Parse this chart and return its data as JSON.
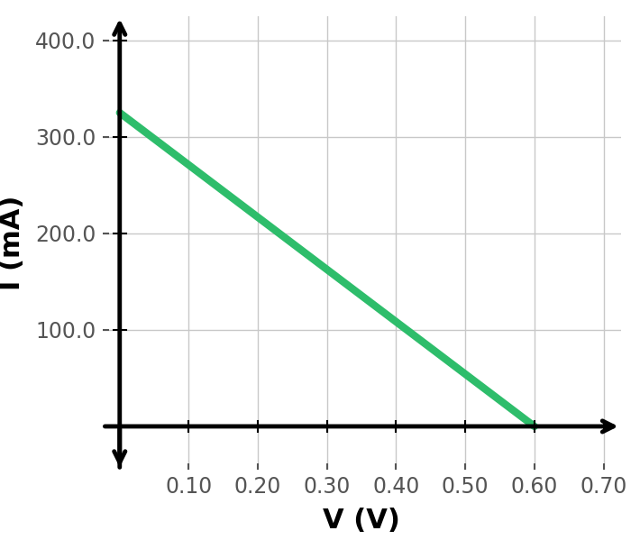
{
  "x_data": [
    0.0,
    0.6
  ],
  "y_data": [
    325.0,
    0.0
  ],
  "line_color": "#2ebd6b",
  "line_width": 6,
  "xlabel": "V (V)",
  "ylabel": "I (mA)",
  "xlim": [
    -0.025,
    0.725
  ],
  "ylim": [
    -45,
    425
  ],
  "xticks": [
    0.1,
    0.2,
    0.3,
    0.4,
    0.5,
    0.6,
    0.7
  ],
  "yticks": [
    100.0,
    200.0,
    300.0,
    400.0
  ],
  "grid_color": "#c8c8c8",
  "background_color": "#ffffff",
  "axis_color": "#000000",
  "tick_label_color": "#555555",
  "xlabel_fontsize": 22,
  "ylabel_fontsize": 22,
  "tick_fontsize": 17,
  "axis_linewidth": 3.5,
  "mutation_scale": 22
}
